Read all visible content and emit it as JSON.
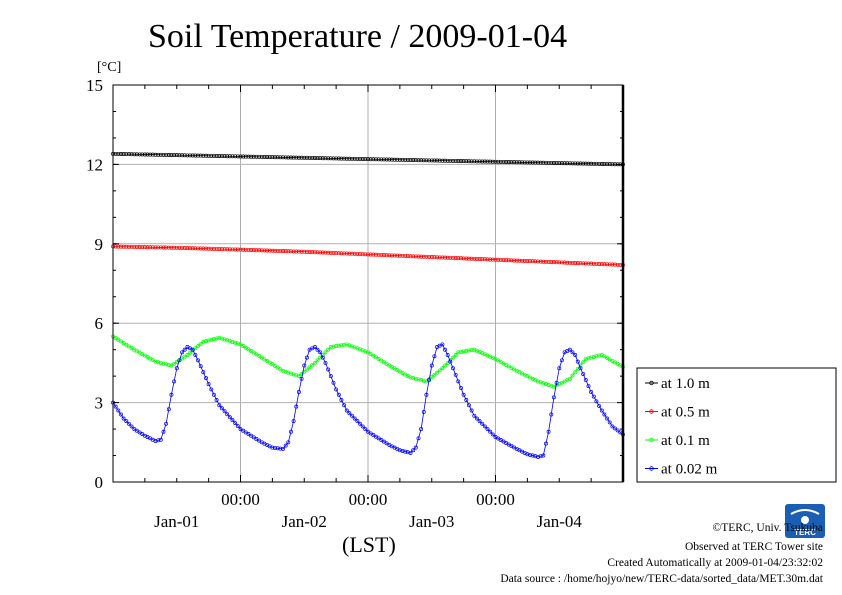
{
  "chart_data": {
    "type": "line",
    "title": "Soil Temperature / 2009-01-04",
    "ylabel": "[°C]",
    "xlabel": "(LST)",
    "ylim": [
      0,
      15
    ],
    "y_ticks": [
      "0",
      "3",
      "6",
      "9",
      "12",
      "15"
    ],
    "x_time_ticks": [
      "00:00",
      "00:00",
      "00:00"
    ],
    "x_date_labels": [
      "Jan-01",
      "Jan-02",
      "Jan-03",
      "Jan-04"
    ],
    "xlim_hours": [
      0,
      96
    ],
    "x_unit": "hours",
    "grid": true,
    "legend_position": "right",
    "series": [
      {
        "name": "at 1.0 m",
        "color": "#000000",
        "x": [
          0,
          12,
          24,
          36,
          48,
          60,
          72,
          84,
          96
        ],
        "values": [
          12.4,
          12.35,
          12.3,
          12.25,
          12.2,
          12.15,
          12.1,
          12.05,
          12.0
        ]
      },
      {
        "name": "at 0.5 m",
        "color": "#ff0000",
        "x": [
          0,
          12,
          24,
          36,
          48,
          60,
          72,
          84,
          96
        ],
        "values": [
          8.9,
          8.85,
          8.78,
          8.7,
          8.6,
          8.5,
          8.4,
          8.3,
          8.2
        ]
      },
      {
        "name": "at 0.1 m",
        "color": "#00ff00",
        "x": [
          0,
          4,
          8,
          11,
          14,
          17,
          20,
          24,
          28,
          32,
          35,
          38,
          41,
          44,
          48,
          52,
          56,
          59,
          62,
          65,
          68,
          72,
          76,
          80,
          83,
          86,
          89,
          92,
          96
        ],
        "values": [
          5.5,
          5.0,
          4.55,
          4.4,
          4.8,
          5.3,
          5.45,
          5.2,
          4.7,
          4.2,
          4.0,
          4.5,
          5.1,
          5.2,
          4.9,
          4.4,
          3.95,
          3.8,
          4.3,
          4.9,
          5.0,
          4.65,
          4.2,
          3.8,
          3.6,
          3.9,
          4.65,
          4.8,
          4.35
        ]
      },
      {
        "name": "at 0.02 m",
        "color": "#0000ff",
        "x": [
          0,
          2,
          4,
          6,
          8,
          9,
          10,
          11,
          12,
          13,
          14,
          15,
          16,
          18,
          20,
          24,
          28,
          30,
          32,
          33,
          34,
          35,
          36,
          37,
          38,
          39,
          40,
          42,
          44,
          48,
          52,
          54,
          56,
          57,
          58,
          59,
          60,
          61,
          62,
          63,
          64,
          66,
          68,
          72,
          76,
          78,
          80,
          81,
          82,
          83,
          84,
          85,
          86,
          87,
          88,
          90,
          92,
          94,
          96
        ],
        "values": [
          3.0,
          2.4,
          2.0,
          1.75,
          1.55,
          1.6,
          2.2,
          3.3,
          4.3,
          4.9,
          5.1,
          5.0,
          4.6,
          3.7,
          2.9,
          2.0,
          1.5,
          1.3,
          1.25,
          1.5,
          2.3,
          3.4,
          4.4,
          5.0,
          5.1,
          4.9,
          4.5,
          3.5,
          2.7,
          1.9,
          1.4,
          1.2,
          1.1,
          1.3,
          2.0,
          3.3,
          4.4,
          5.1,
          5.2,
          4.8,
          4.3,
          3.3,
          2.5,
          1.7,
          1.25,
          1.05,
          0.95,
          1.0,
          1.9,
          3.2,
          4.3,
          4.9,
          5.0,
          4.8,
          4.3,
          3.4,
          2.7,
          2.1,
          1.8
        ]
      }
    ]
  },
  "credits": {
    "line1": "©TERC, Univ. Tsukuba",
    "line2": "Observed at TERC Tower site",
    "line3": "Created Automatically at 2009-01-04/23:32:02",
    "line4": "Data source : /home/hojyo/new/TERC-data/sorted_data/MET.30m.dat"
  },
  "logo": {
    "name": "terc-logo",
    "text": "TERC",
    "color": "#1a5fb4"
  }
}
